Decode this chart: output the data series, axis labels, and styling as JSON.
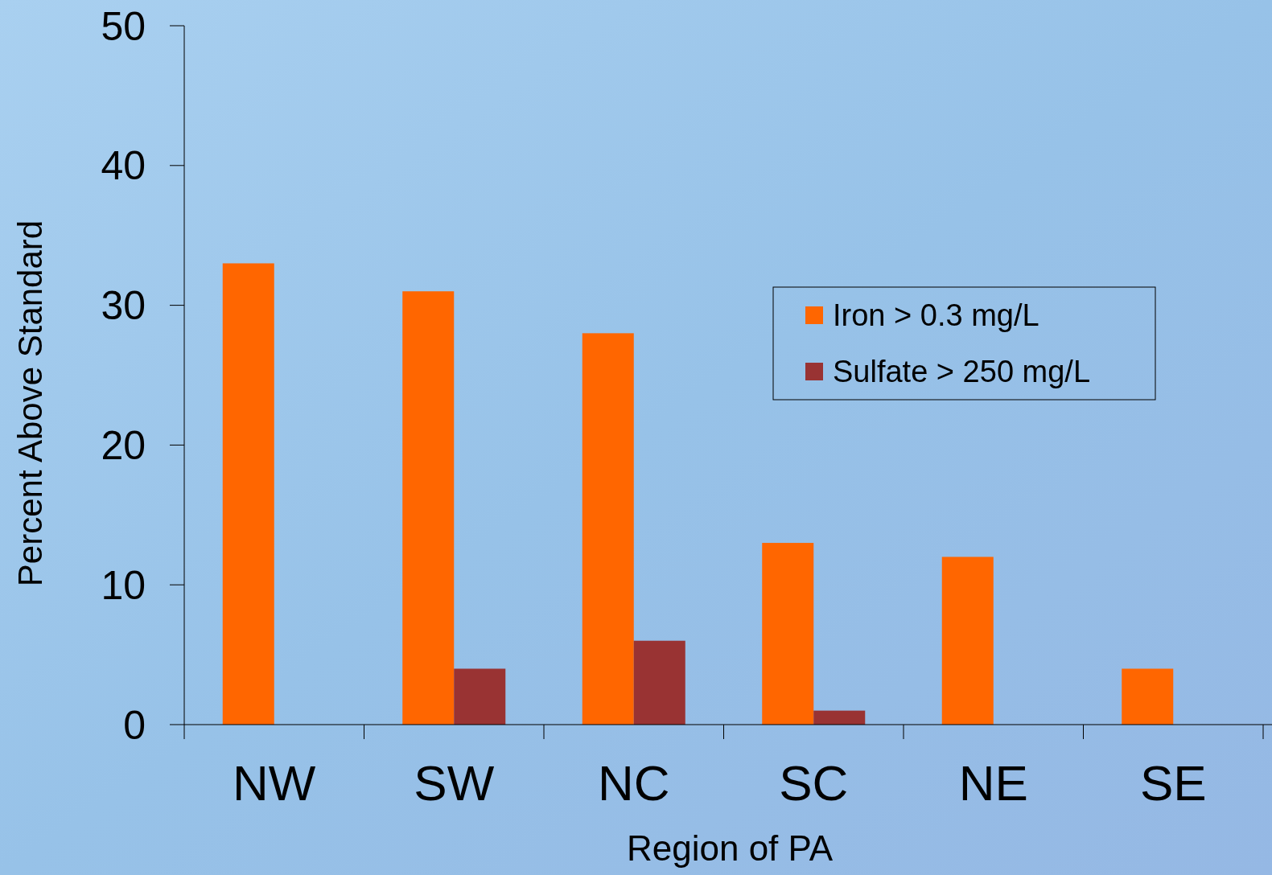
{
  "chart_data": {
    "type": "bar",
    "xlabel": "Region of PA",
    "ylabel": "Percent Above Standard",
    "categories": [
      "NW",
      "SW",
      "NC",
      "SC",
      "NE",
      "SE"
    ],
    "series": [
      {
        "name": "Iron > 0.3 mg/L",
        "color": "#ff6600",
        "values": [
          33,
          31,
          28,
          13,
          12,
          4
        ]
      },
      {
        "name": "Sulfate > 250 mg/L",
        "color": "#993333",
        "values": [
          0,
          4,
          6,
          1,
          0,
          0
        ]
      }
    ],
    "ylim": [
      0,
      50
    ],
    "yticks": [
      0,
      10,
      20,
      30,
      40,
      50
    ],
    "grid": false,
    "legend": "top right"
  }
}
